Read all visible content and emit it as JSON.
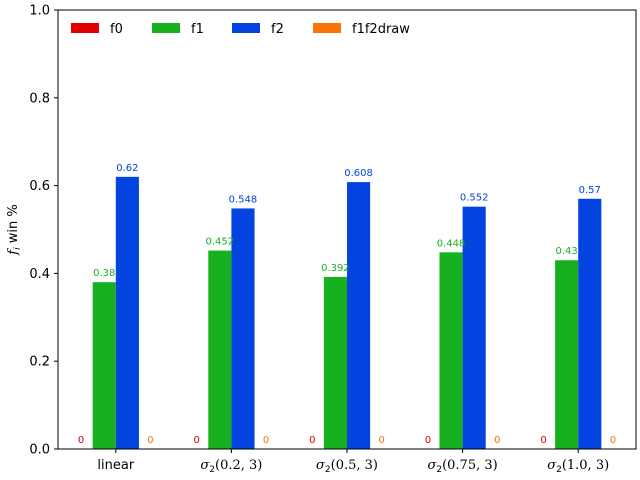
{
  "chart_data": {
    "type": "bar",
    "title": "",
    "xlabel": "",
    "ylabel": "f_i win %",
    "ylim": [
      0,
      1.0
    ],
    "yticks": [
      0.0,
      0.2,
      0.4,
      0.6,
      0.8,
      1.0
    ],
    "ytick_labels": [
      "0.0",
      "0.2",
      "0.4",
      "0.6",
      "0.8",
      "1.0"
    ],
    "grid": false,
    "legend_position": "top-left",
    "categories": [
      {
        "base": "linear",
        "args": ""
      },
      {
        "base": "σ",
        "sub": "2",
        "args": "(0.2, 3)"
      },
      {
        "base": "σ",
        "sub": "2",
        "args": "(0.5, 3)"
      },
      {
        "base": "σ",
        "sub": "2",
        "args": "(0.75, 3)"
      },
      {
        "base": "σ",
        "sub": "2",
        "args": "(1.0, 3)"
      }
    ],
    "series": [
      {
        "name": "f0",
        "color": "#e00000",
        "values": [
          0,
          0,
          0,
          0,
          0
        ],
        "labels": [
          "0",
          "0",
          "0",
          "0",
          "0"
        ]
      },
      {
        "name": "f1",
        "color": "#17b01f",
        "values": [
          0.38,
          0.452,
          0.392,
          0.448,
          0.43
        ],
        "labels": [
          "0.38",
          "0.452",
          "0.392",
          "0.448",
          "0.43"
        ]
      },
      {
        "name": "f2",
        "color": "#0343df",
        "values": [
          0.62,
          0.548,
          0.608,
          0.552,
          0.57
        ],
        "labels": [
          "0.62",
          "0.548",
          "0.608",
          "0.552",
          "0.57"
        ]
      },
      {
        "name": "f1f2draw",
        "color": "#f97306",
        "values": [
          0,
          0,
          0,
          0,
          0
        ],
        "labels": [
          "0",
          "0",
          "0",
          "0",
          "0"
        ]
      }
    ]
  }
}
